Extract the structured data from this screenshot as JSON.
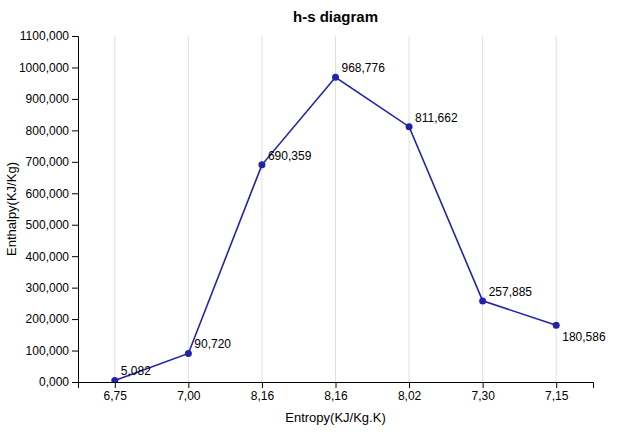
{
  "chart_data": {
    "type": "line",
    "title": "h-s diagram",
    "x_label": "Entropy(KJ/Kg.K)",
    "y_label": "Enthalpy(KJ/Kg)",
    "categories": [
      "6,75",
      "7,00",
      "8,16",
      "8,16",
      "8,02",
      "7,30",
      "7,15"
    ],
    "values": [
      5082,
      90720,
      690359,
      968776,
      811662,
      257885,
      180586
    ],
    "value_labels": [
      "5,082",
      "90,720",
      "690,359",
      "968,776",
      "811,662",
      "257,885",
      "180,586"
    ],
    "data_labels": true,
    "color": "#2222aa",
    "marker": "circle",
    "ylim": [
      0,
      1100000
    ],
    "yticks": [
      {
        "value": 0,
        "label": "0,000"
      },
      {
        "value": 100000,
        "label": "100,000"
      },
      {
        "value": 200000,
        "label": "200,000"
      },
      {
        "value": 300000,
        "label": "300,000"
      },
      {
        "value": 400000,
        "label": "400,000"
      },
      {
        "value": 500000,
        "label": "500,000"
      },
      {
        "value": 600000,
        "label": "600,000"
      },
      {
        "value": 700000,
        "label": "700,000"
      },
      {
        "value": 800000,
        "label": "800,000"
      },
      {
        "value": 900000,
        "label": "900,000"
      },
      {
        "value": 1000000,
        "label": "1000,000"
      },
      {
        "value": 1100000,
        "label": "1100,000"
      }
    ],
    "grid": "x"
  }
}
